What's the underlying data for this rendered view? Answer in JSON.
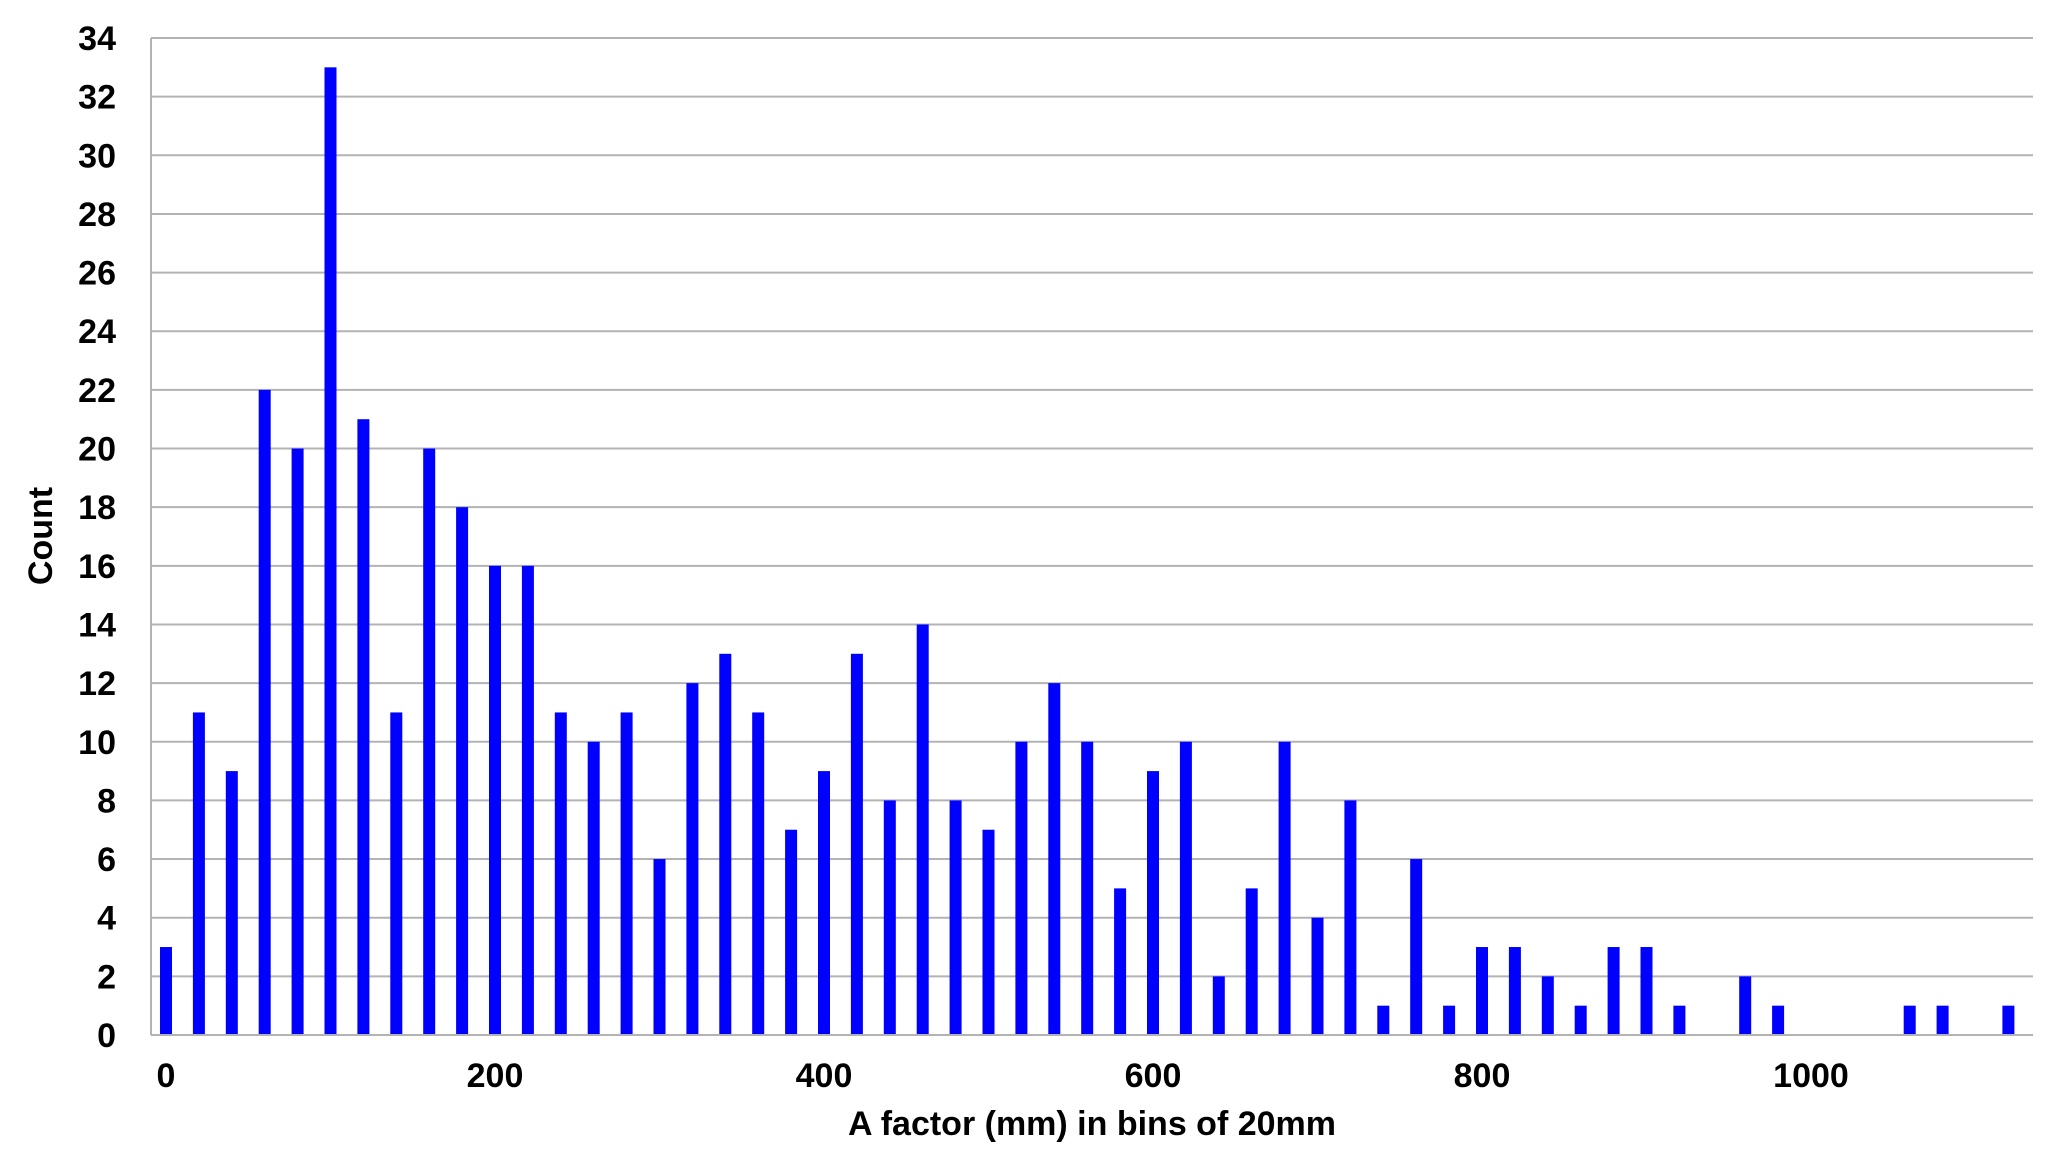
{
  "chart_data": {
    "type": "bar",
    "xlabel": "A factor (mm) in bins of 20mm",
    "ylabel": "Count",
    "bin_width": 20,
    "x": [
      0,
      20,
      40,
      60,
      80,
      100,
      120,
      140,
      160,
      180,
      200,
      220,
      240,
      260,
      280,
      300,
      320,
      340,
      360,
      380,
      400,
      420,
      440,
      460,
      480,
      500,
      520,
      540,
      560,
      580,
      600,
      620,
      640,
      660,
      680,
      700,
      720,
      740,
      760,
      780,
      800,
      820,
      840,
      860,
      880,
      900,
      920,
      940,
      960,
      980,
      1000,
      1020,
      1040,
      1060,
      1080,
      1100,
      1120
    ],
    "values": [
      3,
      11,
      9,
      22,
      20,
      33,
      21,
      11,
      20,
      18,
      16,
      16,
      11,
      10,
      11,
      6,
      12,
      13,
      11,
      7,
      9,
      13,
      8,
      14,
      8,
      7,
      10,
      12,
      10,
      5,
      9,
      10,
      2,
      5,
      10,
      4,
      8,
      1,
      6,
      1,
      3,
      3,
      2,
      1,
      3,
      3,
      1,
      0,
      2,
      1,
      0,
      0,
      0,
      1,
      1,
      0,
      1
    ],
    "ylim": [
      0,
      34
    ],
    "yticks": [
      0,
      2,
      4,
      6,
      8,
      10,
      12,
      14,
      16,
      18,
      20,
      22,
      24,
      26,
      28,
      30,
      32,
      34
    ],
    "xticks": [
      0,
      200,
      400,
      600,
      800,
      1000
    ],
    "grid": true,
    "colors": {
      "bar": "#0000ff",
      "grid": "#b3b3b3"
    }
  }
}
